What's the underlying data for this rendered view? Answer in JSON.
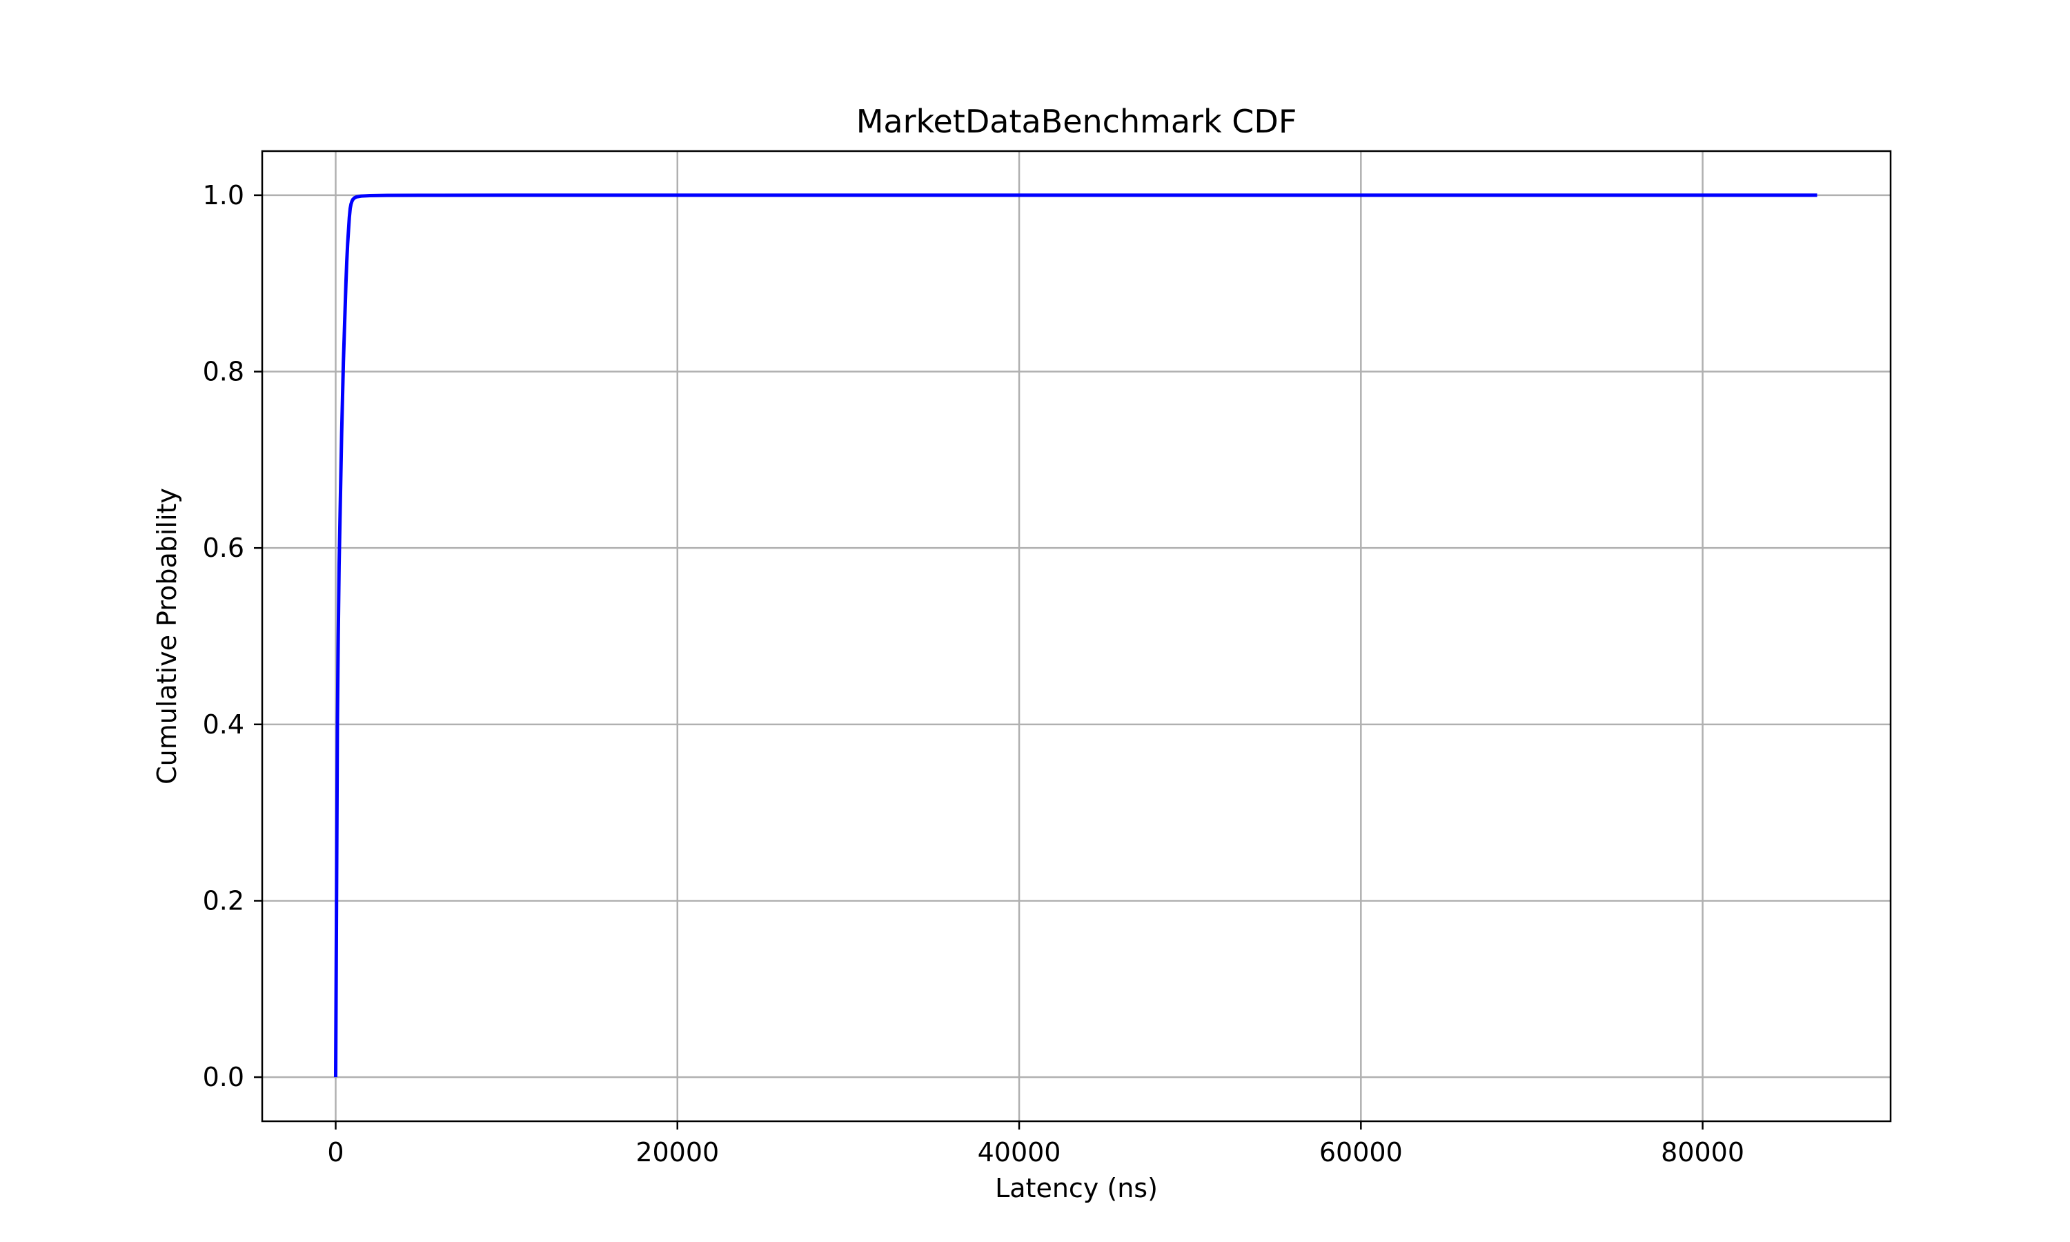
{
  "chart_data": {
    "type": "line",
    "title": "MarketDataBenchmark CDF",
    "xlabel": "Latency (ns)",
    "ylabel": "Cumulative Probability",
    "xlim": [
      -4300,
      91000
    ],
    "ylim": [
      -0.05,
      1.05
    ],
    "xticks": [
      0,
      20000,
      40000,
      60000,
      80000
    ],
    "xtick_labels": [
      "0",
      "20000",
      "40000",
      "60000",
      "80000"
    ],
    "yticks": [
      0.0,
      0.2,
      0.4,
      0.6,
      0.8,
      1.0
    ],
    "ytick_labels": [
      "0.0",
      "0.2",
      "0.4",
      "0.6",
      "0.8",
      "1.0"
    ],
    "grid": true,
    "series": [
      {
        "color": "#0000ff",
        "x": [
          0,
          50,
          100,
          150,
          200,
          250,
          300,
          350,
          400,
          450,
          500,
          550,
          600,
          650,
          700,
          750,
          800,
          850,
          900,
          950,
          1000,
          1100,
          1200,
          1500,
          2000,
          3000,
          5000,
          10000,
          20000,
          40000,
          60000,
          80000,
          86700
        ],
        "y": [
          0.0,
          0.2,
          0.4,
          0.5,
          0.58,
          0.63,
          0.68,
          0.73,
          0.77,
          0.81,
          0.84,
          0.87,
          0.9,
          0.925,
          0.945,
          0.96,
          0.975,
          0.985,
          0.99,
          0.993,
          0.995,
          0.997,
          0.998,
          0.999,
          0.9995,
          0.9998,
          0.9999,
          1.0,
          1.0,
          1.0,
          1.0,
          1.0,
          1.0
        ]
      }
    ]
  }
}
